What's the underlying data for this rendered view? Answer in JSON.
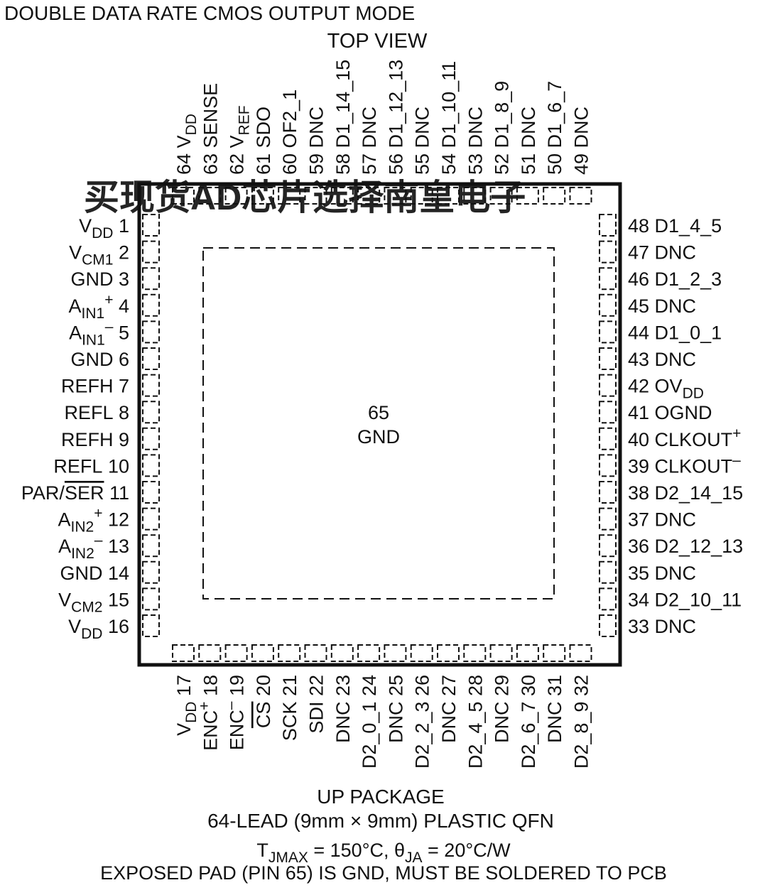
{
  "header": {
    "mode_title": "DOUBLE DATA RATE CMOS OUTPUT MODE",
    "view_label": "TOP VIEW"
  },
  "watermark": {
    "text": "买现货AD芯片选择南皇电子",
    "color": "#f26b6b"
  },
  "package": {
    "exposed_pad": {
      "number": "65",
      "name": "GND"
    }
  },
  "pins": {
    "left": [
      {
        "num": "1",
        "parts": [
          {
            "t": "V"
          },
          {
            "t": "DD",
            "sub": true
          }
        ]
      },
      {
        "num": "2",
        "parts": [
          {
            "t": "V"
          },
          {
            "t": "CM1",
            "sub": true
          }
        ]
      },
      {
        "num": "3",
        "parts": [
          {
            "t": "GND"
          }
        ]
      },
      {
        "num": "4",
        "parts": [
          {
            "t": "A"
          },
          {
            "t": "IN1",
            "sub": true
          },
          {
            "t": "+",
            "sup": true
          }
        ]
      },
      {
        "num": "5",
        "parts": [
          {
            "t": "A"
          },
          {
            "t": "IN1",
            "sub": true
          },
          {
            "t": "–",
            "sup": true
          }
        ]
      },
      {
        "num": "6",
        "parts": [
          {
            "t": "GND"
          }
        ]
      },
      {
        "num": "7",
        "parts": [
          {
            "t": "REFH"
          }
        ]
      },
      {
        "num": "8",
        "parts": [
          {
            "t": "REFL"
          }
        ]
      },
      {
        "num": "9",
        "parts": [
          {
            "t": "REFH"
          }
        ]
      },
      {
        "num": "10",
        "parts": [
          {
            "t": "REFL"
          }
        ]
      },
      {
        "num": "11",
        "parts": [
          {
            "t": "PAR/"
          },
          {
            "t": "SER",
            "over": true
          }
        ]
      },
      {
        "num": "12",
        "parts": [
          {
            "t": "A"
          },
          {
            "t": "IN2",
            "sub": true
          },
          {
            "t": "+",
            "sup": true
          }
        ]
      },
      {
        "num": "13",
        "parts": [
          {
            "t": "A"
          },
          {
            "t": "IN2",
            "sub": true
          },
          {
            "t": "–",
            "sup": true
          }
        ]
      },
      {
        "num": "14",
        "parts": [
          {
            "t": "GND"
          }
        ]
      },
      {
        "num": "15",
        "parts": [
          {
            "t": "V"
          },
          {
            "t": "CM2",
            "sub": true
          }
        ]
      },
      {
        "num": "16",
        "parts": [
          {
            "t": "V"
          },
          {
            "t": "DD",
            "sub": true
          }
        ]
      }
    ],
    "bottom": [
      {
        "num": "17",
        "parts": [
          {
            "t": "V"
          },
          {
            "t": "DD",
            "sub": true
          }
        ]
      },
      {
        "num": "18",
        "parts": [
          {
            "t": "ENC"
          },
          {
            "t": "+",
            "sup": true
          }
        ]
      },
      {
        "num": "19",
        "parts": [
          {
            "t": "ENC"
          },
          {
            "t": "–",
            "sup": true
          }
        ]
      },
      {
        "num": "20",
        "parts": [
          {
            "t": "CS",
            "over": true
          }
        ]
      },
      {
        "num": "21",
        "parts": [
          {
            "t": "SCK"
          }
        ]
      },
      {
        "num": "22",
        "parts": [
          {
            "t": "SDI"
          }
        ]
      },
      {
        "num": "23",
        "parts": [
          {
            "t": "DNC"
          }
        ]
      },
      {
        "num": "24",
        "parts": [
          {
            "t": "D2_0_1"
          }
        ]
      },
      {
        "num": "25",
        "parts": [
          {
            "t": "DNC"
          }
        ]
      },
      {
        "num": "26",
        "parts": [
          {
            "t": "D2_2_3"
          }
        ]
      },
      {
        "num": "27",
        "parts": [
          {
            "t": "DNC"
          }
        ]
      },
      {
        "num": "28",
        "parts": [
          {
            "t": "D2_4_5"
          }
        ]
      },
      {
        "num": "29",
        "parts": [
          {
            "t": "DNC"
          }
        ]
      },
      {
        "num": "30",
        "parts": [
          {
            "t": "D2_6_7"
          }
        ]
      },
      {
        "num": "31",
        "parts": [
          {
            "t": "DNC"
          }
        ]
      },
      {
        "num": "32",
        "parts": [
          {
            "t": "D2_8_9"
          }
        ]
      }
    ],
    "right": [
      {
        "num": "33",
        "parts": [
          {
            "t": "DNC"
          }
        ]
      },
      {
        "num": "34",
        "parts": [
          {
            "t": "D2_10_11"
          }
        ]
      },
      {
        "num": "35",
        "parts": [
          {
            "t": "DNC"
          }
        ]
      },
      {
        "num": "36",
        "parts": [
          {
            "t": "D2_12_13"
          }
        ]
      },
      {
        "num": "37",
        "parts": [
          {
            "t": "DNC"
          }
        ]
      },
      {
        "num": "38",
        "parts": [
          {
            "t": "D2_14_15"
          }
        ]
      },
      {
        "num": "39",
        "parts": [
          {
            "t": "CLKOUT"
          },
          {
            "t": "–",
            "sup": true
          }
        ]
      },
      {
        "num": "40",
        "parts": [
          {
            "t": "CLKOUT"
          },
          {
            "t": "+",
            "sup": true
          }
        ]
      },
      {
        "num": "41",
        "parts": [
          {
            "t": "OGND"
          }
        ]
      },
      {
        "num": "42",
        "parts": [
          {
            "t": "OV"
          },
          {
            "t": "DD",
            "sub": true
          }
        ]
      },
      {
        "num": "43",
        "parts": [
          {
            "t": "DNC"
          }
        ]
      },
      {
        "num": "44",
        "parts": [
          {
            "t": "D1_0_1"
          }
        ]
      },
      {
        "num": "45",
        "parts": [
          {
            "t": "DNC"
          }
        ]
      },
      {
        "num": "46",
        "parts": [
          {
            "t": "D1_2_3"
          }
        ]
      },
      {
        "num": "47",
        "parts": [
          {
            "t": "DNC"
          }
        ]
      },
      {
        "num": "48",
        "parts": [
          {
            "t": "D1_4_5"
          }
        ]
      }
    ],
    "top": [
      {
        "num": "64",
        "parts": [
          {
            "t": "V"
          },
          {
            "t": "DD",
            "sub": true
          }
        ]
      },
      {
        "num": "63",
        "parts": [
          {
            "t": "SENSE"
          }
        ]
      },
      {
        "num": "62",
        "parts": [
          {
            "t": "V"
          },
          {
            "t": "REF",
            "sub": true
          }
        ]
      },
      {
        "num": "61",
        "parts": [
          {
            "t": "SDO"
          }
        ]
      },
      {
        "num": "60",
        "parts": [
          {
            "t": "OF2_1"
          }
        ]
      },
      {
        "num": "59",
        "parts": [
          {
            "t": "DNC"
          }
        ]
      },
      {
        "num": "58",
        "parts": [
          {
            "t": "D1_14_15"
          }
        ]
      },
      {
        "num": "57",
        "parts": [
          {
            "t": "DNC"
          }
        ]
      },
      {
        "num": "56",
        "parts": [
          {
            "t": "D1_12_13"
          }
        ]
      },
      {
        "num": "55",
        "parts": [
          {
            "t": "DNC"
          }
        ]
      },
      {
        "num": "54",
        "parts": [
          {
            "t": "D1_10_11"
          }
        ]
      },
      {
        "num": "53",
        "parts": [
          {
            "t": "DNC"
          }
        ]
      },
      {
        "num": "52",
        "parts": [
          {
            "t": "D1_8_9"
          }
        ]
      },
      {
        "num": "51",
        "parts": [
          {
            "t": "DNC"
          }
        ]
      },
      {
        "num": "50",
        "parts": [
          {
            "t": "D1_6_7"
          }
        ]
      },
      {
        "num": "49",
        "parts": [
          {
            "t": "DNC"
          }
        ]
      }
    ]
  },
  "footer": {
    "package_name": "UP PACKAGE",
    "package_desc": "64-LEAD (9mm × 9mm) PLASTIC QFN",
    "thermal_parts": [
      {
        "t": "T"
      },
      {
        "t": "JMAX",
        "sub": true
      },
      {
        "t": " = 150°C, θ"
      },
      {
        "t": "JA",
        "sub": true
      },
      {
        "t": " = 20°C/W"
      }
    ],
    "exposed_pad_note": "EXPOSED PAD (PIN 65) IS GND, MUST BE SOLDERED TO PCB"
  }
}
